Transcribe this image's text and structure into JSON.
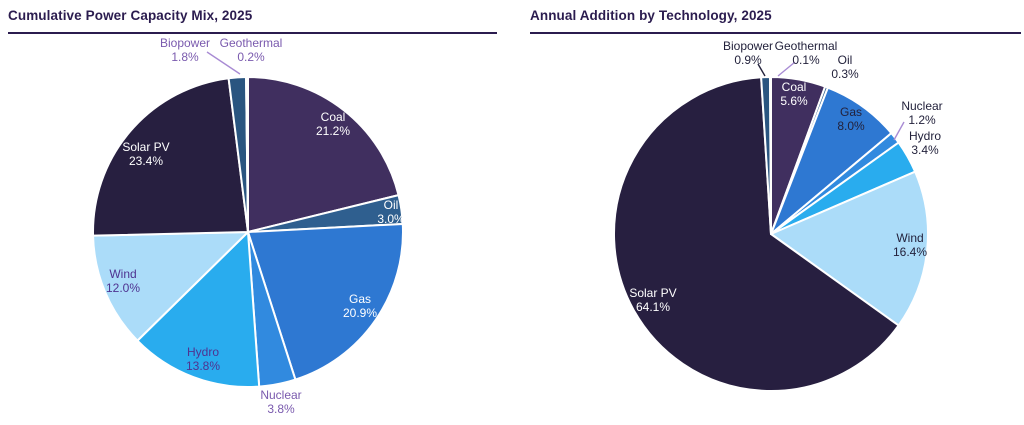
{
  "theme": {
    "background": "#FFFFFF",
    "title_color": "#2B1C4F",
    "rule_color": "#2B1C4F",
    "slice_border_color": "#FFFFFF",
    "purple_label": "#7A5AAE",
    "purple_label_dark": "#4F3391",
    "dark_label": "#23223C",
    "leader_lavender": "#A88BD4"
  },
  "chart_data": [
    {
      "type": "pie",
      "title": "Cumulative Power Capacity Mix, 2025",
      "start_angle_deg": 0,
      "direction": "clockwise",
      "legend": "none",
      "slices": [
        {
          "label": "Coal",
          "value": 21.2,
          "value_label": "21.2%",
          "color": "#402F5F",
          "label_color": "#FFFFFF",
          "placement": "inside",
          "label_xy": [
            333,
            86
          ],
          "leader": null,
          "leader_color": null
        },
        {
          "label": "Oil",
          "value": 3.0,
          "value_label": "3.0%",
          "color": "#2F5F8F",
          "label_color": "#FFFFFF",
          "placement": "inside",
          "label_xy": [
            391,
            174
          ],
          "leader": null,
          "leader_color": null
        },
        {
          "label": "Gas",
          "value": 20.9,
          "value_label": "20.9%",
          "color": "#2E78D2",
          "label_color": "#FFFFFF",
          "placement": "inside",
          "label_xy": [
            360,
            268
          ],
          "leader": null,
          "leader_color": null
        },
        {
          "label": "Nuclear",
          "value": 3.8,
          "value_label": "3.8%",
          "color": "#318ADF",
          "label_color": "#7A5AAE",
          "placement": "outside",
          "label_xy": [
            281,
            364
          ],
          "leader": null,
          "leader_color": null
        },
        {
          "label": "Hydro",
          "value": 13.8,
          "value_label": "13.8%",
          "color": "#29ACEE",
          "label_color": "#4F3391",
          "placement": "inside",
          "label_xy": [
            203,
            321
          ],
          "leader": null,
          "leader_color": null
        },
        {
          "label": "Wind",
          "value": 12.0,
          "value_label": "12.0%",
          "color": "#ABDCF9",
          "label_color": "#4F3391",
          "placement": "inside",
          "label_xy": [
            123,
            243
          ],
          "leader": null,
          "leader_color": null
        },
        {
          "label": "Solar PV",
          "value": 23.4,
          "value_label": "23.4%",
          "color": "#271F40",
          "label_color": "#FFFFFF",
          "placement": "inside",
          "label_xy": [
            146,
            116
          ],
          "leader": null,
          "leader_color": null
        },
        {
          "label": "Biopower",
          "value": 1.8,
          "value_label": "1.8%",
          "color": "#2A5580",
          "label_color": "#7A5AAE",
          "placement": "outside",
          "label_xy": [
            185,
            12
          ],
          "leader": [
            [
              207,
              14
            ],
            [
              240,
              36
            ]
          ],
          "leader_color": "#A88BD4"
        },
        {
          "label": "Geothermal",
          "value": 0.2,
          "value_label": "0.2%",
          "color": "#17375E",
          "label_color": "#7A5AAE",
          "placement": "outside",
          "label_xy": [
            251,
            12
          ],
          "leader": null,
          "leader_color": null
        }
      ]
    },
    {
      "type": "pie",
      "title": "Annual Addition by Technology, 2025",
      "start_angle_deg": 0,
      "direction": "clockwise",
      "legend": "none",
      "slices": [
        {
          "label": "Coal",
          "value": 5.6,
          "value_label": "5.6%",
          "color": "#402F5F",
          "label_color": "#FFFFFF",
          "placement": "inside",
          "label_xy": [
            282,
            56
          ],
          "leader": null,
          "leader_color": null
        },
        {
          "label": "Oil",
          "value": 0.3,
          "value_label": "0.3%",
          "color": "#2F5F8F",
          "label_color": "#23223C",
          "placement": "outside",
          "label_xy": [
            333,
            29
          ],
          "leader": null,
          "leader_color": null
        },
        {
          "label": "Gas",
          "value": 8.0,
          "value_label": "8.0%",
          "color": "#2E78D2",
          "label_color": "#23223C",
          "placement": "inside",
          "label_xy": [
            339,
            81
          ],
          "leader": null,
          "leader_color": null
        },
        {
          "label": "Nuclear",
          "value": 1.2,
          "value_label": "1.2%",
          "color": "#318ADF",
          "label_color": "#23223C",
          "placement": "outside",
          "label_xy": [
            410,
            75
          ],
          "leader": [
            [
              392,
              84
            ],
            [
              382,
              102
            ]
          ],
          "leader_color": "#A88BD4"
        },
        {
          "label": "Hydro",
          "value": 3.4,
          "value_label": "3.4%",
          "color": "#29ACEE",
          "label_color": "#23223C",
          "placement": "outside",
          "label_xy": [
            413,
            105
          ],
          "leader": null,
          "leader_color": null
        },
        {
          "label": "Wind",
          "value": 16.4,
          "value_label": "16.4%",
          "color": "#ABDCF9",
          "label_color": "#23223C",
          "placement": "inside",
          "label_xy": [
            398,
            207
          ],
          "leader": null,
          "leader_color": null
        },
        {
          "label": "Solar PV",
          "value": 64.1,
          "value_label": "64.1%",
          "color": "#271F40",
          "label_color": "#FFFFFF",
          "placement": "inside",
          "label_xy": [
            141,
            262
          ],
          "leader": null,
          "leader_color": null
        },
        {
          "label": "Biopower",
          "value": 0.9,
          "value_label": "0.9%",
          "color": "#2A5580",
          "label_color": "#23223C",
          "placement": "outside",
          "label_xy": [
            236,
            15
          ],
          "leader": [
            [
              246,
              26
            ],
            [
              253,
              38
            ]
          ],
          "leader_color": "#23223C"
        },
        {
          "label": "Geothermal",
          "value": 0.1,
          "value_label": "0.1%",
          "color": "#17375E",
          "label_color": "#23223C",
          "placement": "outside",
          "label_xy": [
            294,
            15
          ],
          "leader": [
            [
              283,
              24
            ],
            [
              266,
              38
            ]
          ],
          "leader_color": "#A88BD4"
        }
      ]
    }
  ]
}
